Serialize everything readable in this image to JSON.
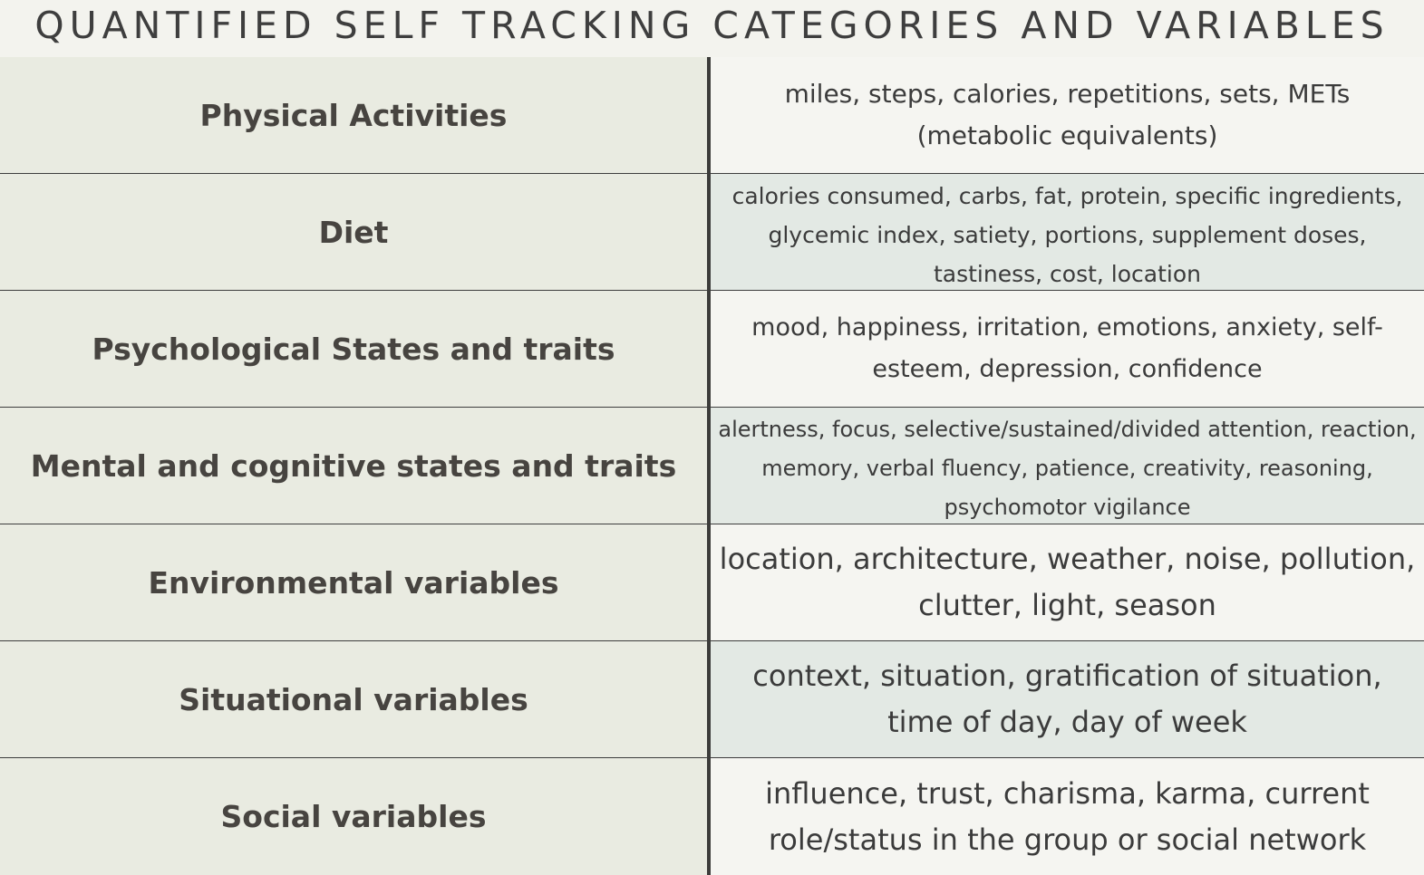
{
  "title": "QUANTIFIED SELF TRACKING CATEGORIES AND VARIABLES",
  "rows": [
    {
      "category": "Physical Activities",
      "variables": "miles, steps, calories, repetitions, sets, METs (metabolic equivalents)"
    },
    {
      "category": "Diet",
      "variables": "calories consumed, carbs, fat, protein, specific ingredients, glycemic index, satiety, portions, supplement doses, tastiness, cost, location"
    },
    {
      "category": "Psychological States and traits",
      "variables": "mood, happiness, irritation, emotions, anxiety, self-esteem, depression, confidence"
    },
    {
      "category": "Mental and cognitive states and traits",
      "variables": "alertness, focus, selective/sustained/divided attention, reaction, memory, verbal fluency, patience, creativity, reasoning, psychomotor vigilance"
    },
    {
      "category": "Environmental variables",
      "variables": "location, architecture, weather, noise, pollution, clutter, light, season"
    },
    {
      "category": "Situational variables",
      "variables": "context, situation, gratification of situation, time of day, day of week"
    },
    {
      "category": "Social variables",
      "variables": "influence, trust, charisma, karma, current role/status in the group or social network"
    }
  ]
}
